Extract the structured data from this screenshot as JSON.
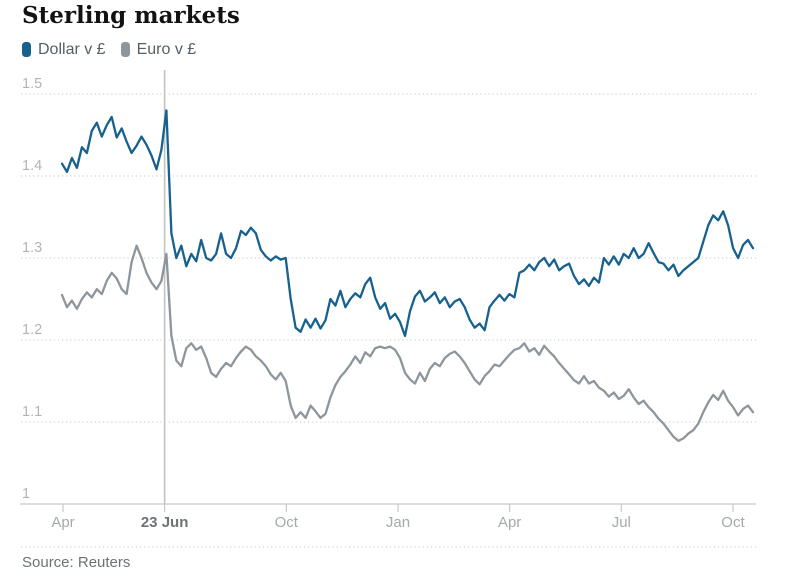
{
  "title": "Sterling markets",
  "source": "Source: Reuters",
  "legend": {
    "items": [
      {
        "name": "dollar",
        "label": "Dollar v £",
        "color": "#17618f"
      },
      {
        "name": "euro",
        "label": "Euro v £",
        "color": "#8d959d"
      }
    ]
  },
  "colors": {
    "dollar_line": "#17618f",
    "euro_line": "#8d959d",
    "grid_dots": "#d2d2d2",
    "axis_line": "#c8cacb",
    "event_line": "#c0c2c3",
    "y_label": "#b1b5b8",
    "x_label": "#a4a9ac",
    "x_label_bold": "#6d7478",
    "title_text": "#121212",
    "source_text": "#6b7277"
  },
  "chart_data": {
    "type": "line",
    "title": "Sterling markets",
    "xlabel": "",
    "ylabel": "",
    "ylim": [
      1,
      1.5
    ],
    "grid": "dotted-horizontal",
    "legend_position": "top-left",
    "x_range_note": "Apr 2016 to mid-Oct 2017, sampled ~every 4 days",
    "y_ticks": [
      {
        "label": "1.5",
        "value": 1.5
      },
      {
        "label": "1.4",
        "value": 1.4
      },
      {
        "label": "1.3",
        "value": 1.3
      },
      {
        "label": "1.2",
        "value": 1.2
      },
      {
        "label": "1.1",
        "value": 1.1
      },
      {
        "label": "1",
        "value": 1.0
      }
    ],
    "x_ticks": [
      {
        "label": "Apr",
        "month_offset": 0,
        "bold": false
      },
      {
        "label": "23 Jun",
        "month_offset": 2.73,
        "bold": true
      },
      {
        "label": "Oct",
        "month_offset": 6,
        "bold": false
      },
      {
        "label": "Jan",
        "month_offset": 9,
        "bold": false
      },
      {
        "label": "Apr",
        "month_offset": 12,
        "bold": false
      },
      {
        "label": "Jul",
        "month_offset": 15,
        "bold": false
      },
      {
        "label": "Oct",
        "month_offset": 18,
        "bold": false
      }
    ],
    "event_line": {
      "label": "23 Jun",
      "month_offset": 2.73
    },
    "series": [
      {
        "name": "Dollar v £",
        "color": "#17618f",
        "values": [
          1.415,
          1.405,
          1.422,
          1.41,
          1.435,
          1.428,
          1.455,
          1.465,
          1.448,
          1.462,
          1.472,
          1.447,
          1.458,
          1.442,
          1.428,
          1.437,
          1.448,
          1.438,
          1.425,
          1.408,
          1.432,
          1.48,
          1.33,
          1.3,
          1.315,
          1.29,
          1.305,
          1.296,
          1.322,
          1.3,
          1.297,
          1.305,
          1.33,
          1.305,
          1.3,
          1.312,
          1.333,
          1.328,
          1.337,
          1.33,
          1.31,
          1.302,
          1.297,
          1.302,
          1.298,
          1.3,
          1.25,
          1.215,
          1.21,
          1.225,
          1.215,
          1.226,
          1.214,
          1.224,
          1.25,
          1.242,
          1.26,
          1.24,
          1.25,
          1.257,
          1.252,
          1.268,
          1.276,
          1.252,
          1.238,
          1.245,
          1.226,
          1.232,
          1.222,
          1.205,
          1.235,
          1.253,
          1.26,
          1.247,
          1.252,
          1.258,
          1.245,
          1.252,
          1.24,
          1.247,
          1.25,
          1.24,
          1.225,
          1.215,
          1.22,
          1.212,
          1.24,
          1.248,
          1.255,
          1.248,
          1.256,
          1.252,
          1.282,
          1.285,
          1.292,
          1.285,
          1.295,
          1.3,
          1.29,
          1.298,
          1.285,
          1.29,
          1.293,
          1.278,
          1.268,
          1.274,
          1.266,
          1.276,
          1.27,
          1.3,
          1.292,
          1.302,
          1.292,
          1.305,
          1.3,
          1.312,
          1.3,
          1.305,
          1.318,
          1.306,
          1.295,
          1.293,
          1.285,
          1.292,
          1.278,
          1.285,
          1.29,
          1.295,
          1.3,
          1.32,
          1.34,
          1.352,
          1.346,
          1.357,
          1.34,
          1.312,
          1.3,
          1.316,
          1.322,
          1.312
        ]
      },
      {
        "name": "Euro v £",
        "color": "#8d959d",
        "values": [
          1.255,
          1.24,
          1.248,
          1.238,
          1.25,
          1.258,
          1.252,
          1.262,
          1.256,
          1.272,
          1.282,
          1.275,
          1.262,
          1.256,
          1.295,
          1.315,
          1.3,
          1.282,
          1.27,
          1.262,
          1.272,
          1.305,
          1.205,
          1.175,
          1.168,
          1.19,
          1.196,
          1.188,
          1.192,
          1.178,
          1.16,
          1.155,
          1.165,
          1.172,
          1.168,
          1.178,
          1.186,
          1.192,
          1.188,
          1.18,
          1.175,
          1.168,
          1.158,
          1.152,
          1.16,
          1.15,
          1.12,
          1.105,
          1.112,
          1.105,
          1.12,
          1.113,
          1.105,
          1.11,
          1.13,
          1.145,
          1.155,
          1.162,
          1.17,
          1.18,
          1.172,
          1.185,
          1.18,
          1.19,
          1.192,
          1.19,
          1.192,
          1.188,
          1.178,
          1.16,
          1.152,
          1.147,
          1.16,
          1.15,
          1.165,
          1.172,
          1.168,
          1.178,
          1.183,
          1.186,
          1.18,
          1.172,
          1.162,
          1.152,
          1.146,
          1.156,
          1.162,
          1.17,
          1.168,
          1.175,
          1.182,
          1.188,
          1.19,
          1.196,
          1.186,
          1.19,
          1.182,
          1.193,
          1.186,
          1.18,
          1.172,
          1.165,
          1.158,
          1.151,
          1.147,
          1.156,
          1.147,
          1.15,
          1.142,
          1.138,
          1.131,
          1.136,
          1.128,
          1.132,
          1.14,
          1.13,
          1.122,
          1.126,
          1.118,
          1.112,
          1.104,
          1.098,
          1.09,
          1.082,
          1.077,
          1.08,
          1.086,
          1.09,
          1.098,
          1.112,
          1.124,
          1.133,
          1.127,
          1.138,
          1.126,
          1.118,
          1.108,
          1.116,
          1.12,
          1.112
        ]
      }
    ]
  }
}
